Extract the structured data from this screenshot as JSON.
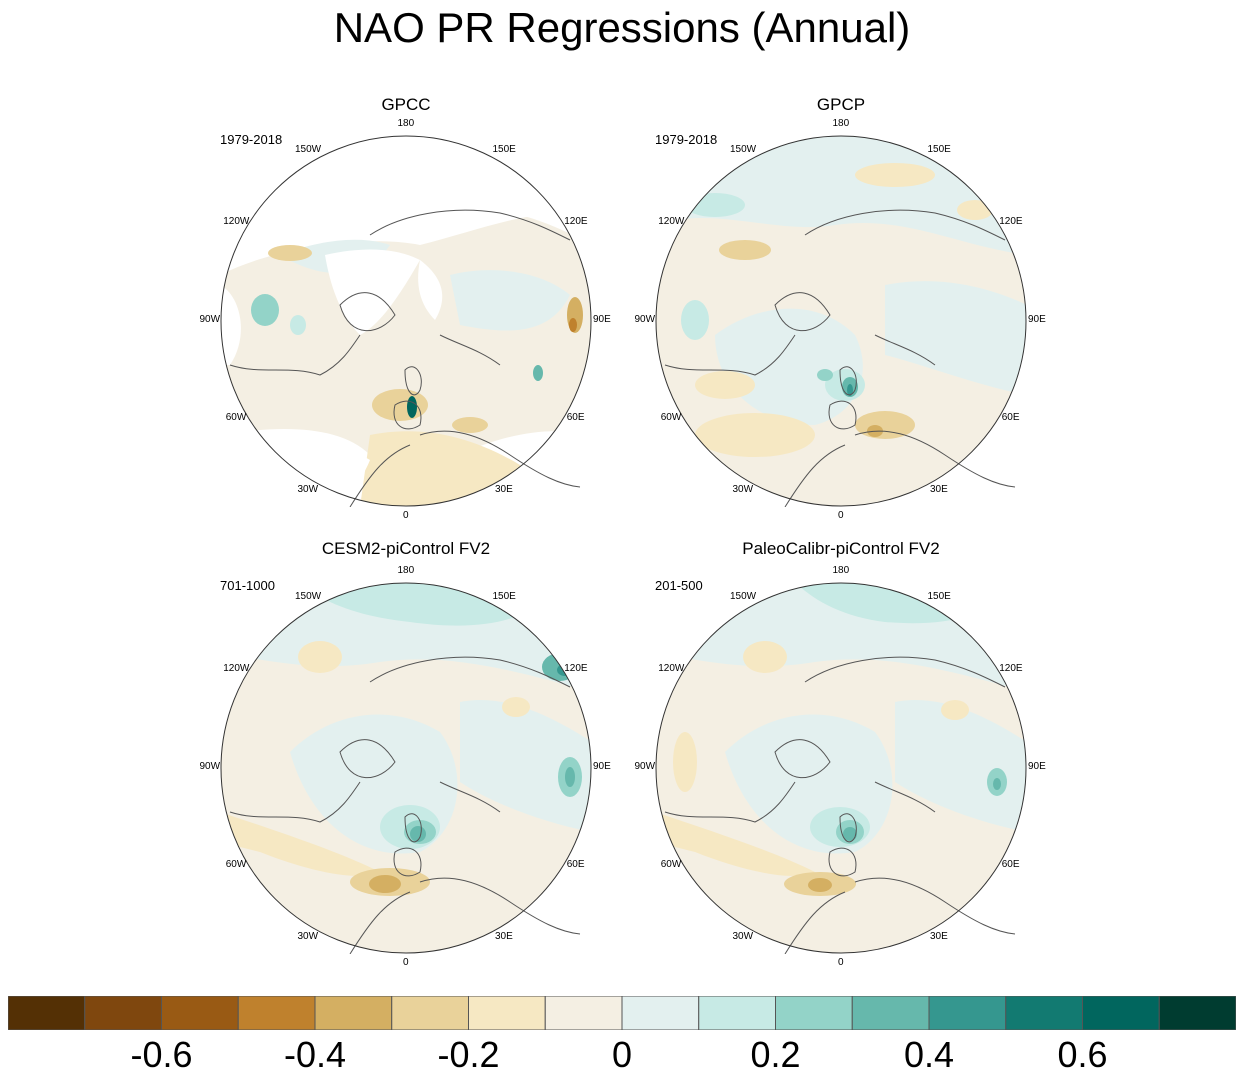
{
  "title": "NAO PR Regressions (Annual)",
  "lon_labels": [
    "180",
    "150E",
    "120E",
    "90E",
    "60E",
    "30E",
    "0",
    "30W",
    "60W",
    "90W",
    "120W",
    "150W"
  ],
  "panels": [
    {
      "title": "GPCC",
      "period": "1979-2018"
    },
    {
      "title": "GPCP",
      "period": "1979-2018"
    },
    {
      "title": "CESM2-piControl FV2",
      "period": "701-1000"
    },
    {
      "title": "PaleoCalibr-piControl FV2",
      "period": "201-500"
    }
  ],
  "colorbar": {
    "colors": [
      "#543005",
      "#7f470e",
      "#995a14",
      "#bf812d",
      "#d4af62",
      "#e9d29a",
      "#f6e8c3",
      "#f4efe3",
      "#e3f0ef",
      "#c7eae5",
      "#93d3c8",
      "#66b8ac",
      "#35978f",
      "#127a71",
      "#01665e",
      "#003c30"
    ],
    "tick_labels": [
      "-0.6",
      "-0.4",
      "-0.2",
      "0",
      "0.2",
      "0.4",
      "0.6"
    ],
    "range": [
      -0.8,
      0.8
    ]
  }
}
